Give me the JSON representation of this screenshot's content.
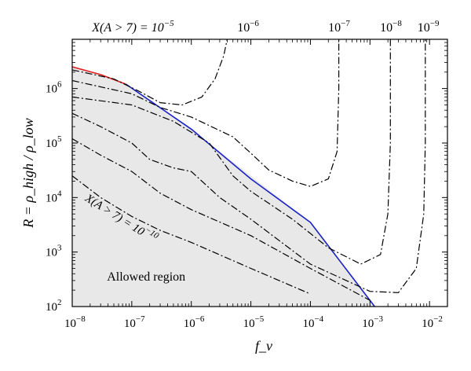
{
  "chart_data": {
    "type": "line",
    "title": "",
    "xlabel": "f_ν",
    "ylabel": "R = ρ_high / ρ_low",
    "xscale": "log",
    "yscale": "log",
    "xlim": [
      1e-08,
      0.02
    ],
    "ylim": [
      100,
      8000000
    ],
    "grid": false,
    "x_ticks": [
      {
        "value": 1e-08,
        "base": "10",
        "exp": "−8"
      },
      {
        "value": 1e-07,
        "base": "10",
        "exp": "−7"
      },
      {
        "value": 1e-06,
        "base": "10",
        "exp": "−6"
      },
      {
        "value": 1e-05,
        "base": "10",
        "exp": "−5"
      },
      {
        "value": 0.0001,
        "base": "10",
        "exp": "−4"
      },
      {
        "value": 0.001,
        "base": "10",
        "exp": "−3"
      },
      {
        "value": 0.01,
        "base": "10",
        "exp": "−2"
      }
    ],
    "y_ticks": [
      {
        "value": 100.0,
        "base": "10",
        "exp": "2"
      },
      {
        "value": 1000.0,
        "base": "10",
        "exp": "3"
      },
      {
        "value": 10000.0,
        "base": "10",
        "exp": "4"
      },
      {
        "value": 100000.0,
        "base": "10",
        "exp": "5"
      },
      {
        "value": 1000000.0,
        "base": "10",
        "exp": "6"
      }
    ],
    "top_labels": [
      {
        "text": "X(A > 7) = 10",
        "exp": "−5",
        "x": 1.8e-07
      },
      {
        "text": "10",
        "exp": "−6",
        "x": 8e-06
      },
      {
        "text": "10",
        "exp": "−7",
        "x": 0.00027
      },
      {
        "text": "10",
        "exp": "−8",
        "x": 0.002
      },
      {
        "text": "10",
        "exp": "−9",
        "x": 0.0085
      }
    ],
    "annotations": [
      {
        "text": "X(A > 7) = 10",
        "exp": "−10",
        "x": 1.6e-08,
        "y": 9000,
        "rotate": 32
      },
      {
        "text": "Allowed region",
        "x": 2.5e-08,
        "y": 300
      }
    ],
    "allowed_region": {
      "boundary": [
        [
          1e-08,
          2500000.0
        ],
        [
          3e-08,
          1800000.0
        ],
        [
          8e-08,
          1200000.0
        ],
        [
          1e-06,
          180000.0
        ],
        [
          0.0001,
          3500.0
        ],
        [
          0.0012,
          100
        ]
      ],
      "fill": "#e8e8e8"
    },
    "series": [
      {
        "style": "solid",
        "color": "#e02020",
        "points": [
          [
            1e-08,
            2500000.0
          ],
          [
            3e-08,
            1800000.0
          ],
          [
            8e-08,
            1200000.0
          ]
        ]
      },
      {
        "style": "solid",
        "color": "#1a22c8",
        "points": [
          [
            8e-08,
            1200000.0
          ],
          [
            1e-06,
            180000.0
          ],
          [
            1e-05,
            22000.0
          ],
          [
            0.0001,
            3500.0
          ],
          [
            0.0012,
            100
          ]
        ]
      },
      {
        "label": "10^-5",
        "style": "dashdot",
        "color": "#000000",
        "points": [
          [
            1e-08,
            2200000.0
          ],
          [
            5e-08,
            1500000.0
          ],
          [
            1.3e-07,
            900000.0
          ],
          [
            3e-07,
            550000.0
          ],
          [
            7e-07,
            500000.0
          ],
          [
            1.5e-06,
            700000.0
          ],
          [
            2.5e-06,
            1500000.0
          ],
          [
            3.5e-06,
            4000000.0
          ],
          [
            4e-06,
            8000000.0
          ]
        ]
      },
      {
        "label": "10^-6",
        "style": "dashdot",
        "color": "#000000",
        "points": [
          [
            1e-08,
            1400000.0
          ],
          [
            1e-07,
            800000.0
          ],
          [
            3e-07,
            450000.0
          ],
          [
            1e-06,
            300000.0
          ],
          [
            5e-06,
            130000.0
          ],
          [
            1e-05,
            65000.0
          ],
          [
            2e-05,
            32000.0
          ],
          [
            5e-05,
            20000.0
          ],
          [
            0.0001,
            16000.0
          ],
          [
            0.0002,
            22000.0
          ],
          [
            0.00028,
            70000.0
          ],
          [
            0.0003,
            1000000.0
          ],
          [
            0.0003,
            8000000.0
          ]
        ]
      },
      {
        "label": "10^-7",
        "style": "dashdot",
        "color": "#000000",
        "points": [
          [
            1e-08,
            700000.0
          ],
          [
            1e-07,
            500000.0
          ],
          [
            5e-07,
            250000.0
          ],
          [
            2e-06,
            100000.0
          ],
          [
            5e-06,
            25000.0
          ],
          [
            1e-05,
            13000.0
          ],
          [
            5e-05,
            4000.0
          ],
          [
            0.0002,
            1200.0
          ],
          [
            0.0007,
            600
          ],
          [
            0.0015,
            900
          ],
          [
            0.002,
            5000.0
          ],
          [
            0.0022,
            100000.0
          ],
          [
            0.0022,
            8000000.0
          ]
        ]
      },
      {
        "label": "10^-8",
        "style": "dashdot",
        "color": "#000000",
        "points": [
          [
            1e-08,
            350000.0
          ],
          [
            3e-08,
            200000.0
          ],
          [
            1e-07,
            100000.0
          ],
          [
            2e-07,
            50000.0
          ],
          [
            5e-07,
            35000.0
          ],
          [
            1e-06,
            30000.0
          ],
          [
            3e-06,
            10000.0
          ],
          [
            1e-05,
            4000.0
          ],
          [
            0.0001,
            600
          ],
          [
            0.001,
            190
          ],
          [
            0.003,
            180
          ],
          [
            0.006,
            500
          ],
          [
            0.008,
            5000.0
          ],
          [
            0.0085,
            100000.0
          ],
          [
            0.0085,
            8000000.0
          ]
        ]
      },
      {
        "label": "10^-9",
        "style": "dashdot",
        "color": "#000000",
        "points": [
          [
            1e-08,
            120000.0
          ],
          [
            3e-08,
            60000.0
          ],
          [
            1e-07,
            30000.0
          ],
          [
            3e-07,
            12000.0
          ],
          [
            1e-06,
            6000.0
          ],
          [
            1e-05,
            2000.0
          ],
          [
            0.0001,
            500
          ],
          [
            0.001,
            130
          ]
        ]
      },
      {
        "label": "10^-10",
        "style": "dashdot",
        "color": "#000000",
        "points": [
          [
            1e-08,
            25000.0
          ],
          [
            3e-08,
            10000.0
          ],
          [
            1e-07,
            4500.0
          ],
          [
            3e-07,
            2500.0
          ],
          [
            1e-06,
            1500.0
          ],
          [
            1e-05,
            500
          ],
          [
            0.0001,
            170
          ]
        ]
      }
    ]
  }
}
